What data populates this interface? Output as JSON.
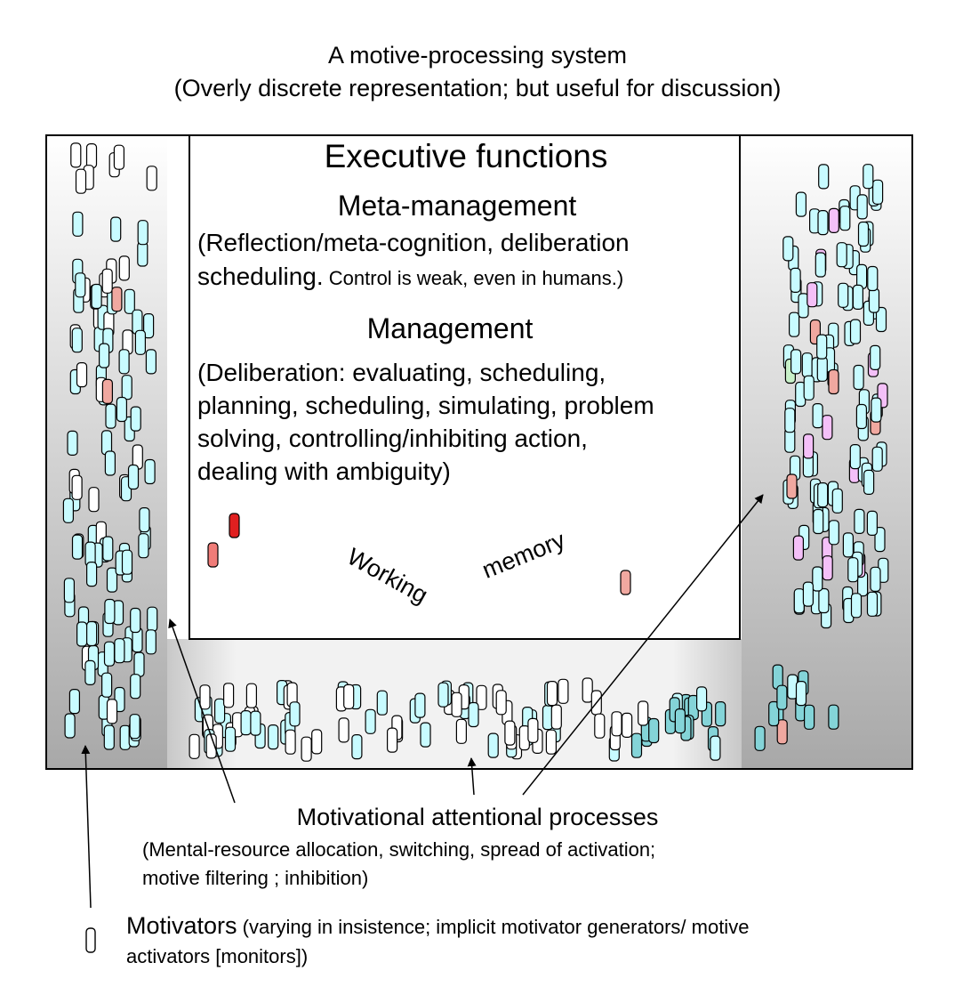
{
  "header": {
    "title": "A motive-processing system",
    "subtitle": "(Overly discrete representation; but useful for discussion)"
  },
  "executive": {
    "title": "Executive functions",
    "meta_title": "Meta-management",
    "meta_desc_1": "(Reflection/meta-cognition, deliberation",
    "meta_desc_2a": "scheduling.",
    "meta_desc_2b": " Control is weak, even in humans.)",
    "mgmt_title": "Management",
    "mgmt_desc": [
      "(Deliberation: evaluating, scheduling,",
      "planning, scheduling,  simulating, problem",
      "solving,  controlling/inhibiting action,",
      "dealing with ambiguity)"
    ],
    "wm_word_1": "Working",
    "wm_word_2": "memory"
  },
  "attentional": {
    "title": "Motivational attentional processes",
    "desc_1": "(Mental-resource allocation, switching, spread of activation;",
    "desc_2": "motive filtering ; inhibition)"
  },
  "legend": {
    "motivators_bold": "Motivators",
    "motivators_desc": " (varying in insistence; implicit motivator generators/ motive",
    "motivators_desc_2": "activators [monitors])"
  },
  "colors": {
    "cyan": "#c8fbff",
    "teal": "#84d4d8",
    "white": "#ffffff",
    "pink": "#f0a8a0",
    "magenta": "#f4c0f8",
    "green": "#c8f0c8",
    "red": "#e02020",
    "salmon": "#f07c78"
  }
}
